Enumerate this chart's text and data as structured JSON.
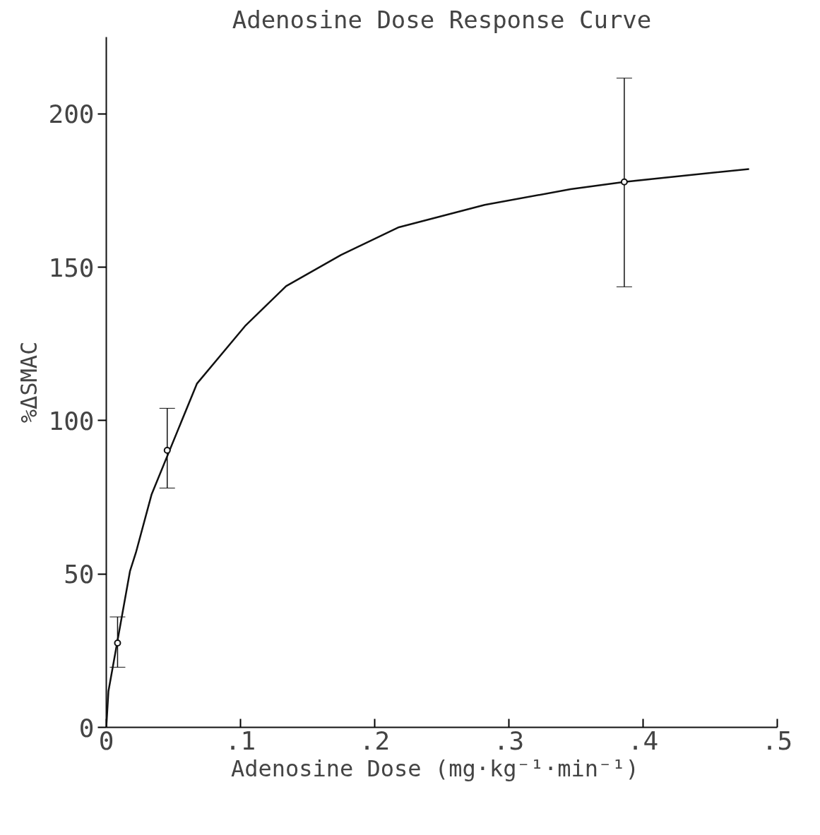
{
  "chart_data": {
    "type": "scatter",
    "title": "Adenosine Dose Response Curve",
    "xlabel": "Adenosine Dose  (mg·kg⁻¹·min⁻¹)",
    "ylabel": "%ΔSMAC",
    "xlim": [
      0,
      0.5
    ],
    "ylim": [
      0,
      225
    ],
    "xticks": [
      0,
      {
        "value": 0.1,
        "label": ".1"
      },
      {
        "value": 0.2,
        "label": ".2"
      },
      {
        "value": 0.3,
        "label": ".3"
      },
      {
        "value": 0.4,
        "label": ".4"
      },
      {
        "value": 0.5,
        "label": ".5"
      }
    ],
    "yticks": [
      0,
      50,
      100,
      150,
      200
    ],
    "grid": false,
    "series": [
      {
        "type": "line",
        "color": "#111111",
        "line_style": "solid",
        "x": [
          0,
          0.0016,
          0.0177,
          0.0221,
          0.0338,
          0.0675,
          0.1034,
          0.134,
          0.175,
          0.218,
          0.282,
          0.346,
          0.386,
          0.435,
          0.479
        ],
        "values": [
          0,
          11.8,
          51,
          57,
          76,
          112,
          130.8,
          143.8,
          154,
          163,
          170.3,
          175.4,
          177.8,
          180,
          182
        ]
      },
      {
        "color": "#111111",
        "marker": "circle",
        "x": [
          0.0084,
          0.0454,
          0.386
        ],
        "values": [
          27.5,
          90.3,
          177.8
        ],
        "errors": [
          [
            19.6,
            36
          ],
          [
            78,
            104
          ],
          [
            143.6,
            211.6
          ]
        ]
      }
    ]
  }
}
